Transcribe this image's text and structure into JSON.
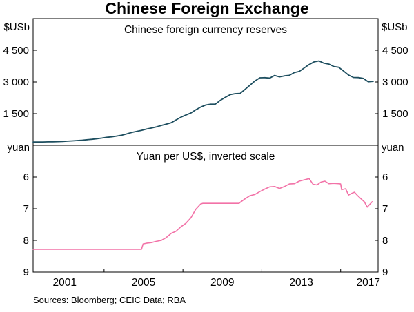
{
  "title": "Chinese Foreign Exchange",
  "sources": "Sources: Bloomberg; CEIC Data; RBA",
  "colors": {
    "reserves_line": "#1d4e5f",
    "yuan_line": "#f272a7",
    "axis": "#000000"
  },
  "xaxis": {
    "range": [
      2000,
      2017.5
    ],
    "labels": [
      {
        "label": "2001",
        "x": 2001.6
      },
      {
        "label": "2005",
        "x": 2005.6
      },
      {
        "label": "2009",
        "x": 2009.6
      },
      {
        "label": "2013",
        "x": 2013.6
      },
      {
        "label": "2017",
        "x": 2017.0
      }
    ],
    "ticks": [
      2003.6,
      2007.6,
      2011.6,
      2015.6
    ]
  },
  "chart_data": [
    {
      "type": "line",
      "title": "Chinese foreign currency reserves",
      "unit": "$USb",
      "ylim": [
        0,
        6000
      ],
      "inverted": false,
      "color": "#1d4e5f",
      "yticks": [
        {
          "v": 1500,
          "label": "1 500"
        },
        {
          "v": 3000,
          "label": "3 000"
        },
        {
          "v": 4500,
          "label": "4 500"
        }
      ],
      "points": [
        [
          2000.0,
          157
        ],
        [
          2000.25,
          158
        ],
        [
          2000.5,
          160
        ],
        [
          2000.75,
          166
        ],
        [
          2001.0,
          170
        ],
        [
          2001.25,
          176
        ],
        [
          2001.5,
          186
        ],
        [
          2001.75,
          200
        ],
        [
          2002.0,
          212
        ],
        [
          2002.25,
          228
        ],
        [
          2002.5,
          246
        ],
        [
          2002.75,
          266
        ],
        [
          2003.0,
          286
        ],
        [
          2003.25,
          316
        ],
        [
          2003.5,
          346
        ],
        [
          2003.75,
          380
        ],
        [
          2004.0,
          403
        ],
        [
          2004.25,
          440
        ],
        [
          2004.5,
          480
        ],
        [
          2004.75,
          540
        ],
        [
          2005.0,
          610
        ],
        [
          2005.25,
          660
        ],
        [
          2005.5,
          711
        ],
        [
          2005.75,
          769
        ],
        [
          2006.0,
          819
        ],
        [
          2006.25,
          875
        ],
        [
          2006.5,
          941
        ],
        [
          2006.75,
          1000
        ],
        [
          2007.0,
          1066
        ],
        [
          2007.25,
          1202
        ],
        [
          2007.5,
          1333
        ],
        [
          2007.75,
          1434
        ],
        [
          2008.0,
          1528
        ],
        [
          2008.25,
          1682
        ],
        [
          2008.5,
          1809
        ],
        [
          2008.75,
          1906
        ],
        [
          2009.0,
          1946
        ],
        [
          2009.25,
          1954
        ],
        [
          2009.5,
          2132
        ],
        [
          2009.75,
          2273
        ],
        [
          2010.0,
          2399
        ],
        [
          2010.25,
          2447
        ],
        [
          2010.5,
          2454
        ],
        [
          2010.75,
          2648
        ],
        [
          2011.0,
          2847
        ],
        [
          2011.25,
          3045
        ],
        [
          2011.5,
          3197
        ],
        [
          2011.75,
          3202
        ],
        [
          2012.0,
          3181
        ],
        [
          2012.25,
          3305
        ],
        [
          2012.5,
          3240
        ],
        [
          2012.75,
          3287
        ],
        [
          2013.0,
          3312
        ],
        [
          2013.25,
          3443
        ],
        [
          2013.5,
          3497
        ],
        [
          2013.75,
          3662
        ],
        [
          2014.0,
          3821
        ],
        [
          2014.25,
          3948
        ],
        [
          2014.5,
          3993
        ],
        [
          2014.75,
          3888
        ],
        [
          2015.0,
          3843
        ],
        [
          2015.25,
          3730
        ],
        [
          2015.5,
          3694
        ],
        [
          2015.75,
          3514
        ],
        [
          2016.0,
          3330
        ],
        [
          2016.25,
          3213
        ],
        [
          2016.5,
          3205
        ],
        [
          2016.75,
          3166
        ],
        [
          2017.0,
          3011
        ],
        [
          2017.25,
          3030
        ]
      ]
    },
    {
      "type": "line",
      "title": "Yuan per US$, inverted scale",
      "unit": "yuan",
      "ylim": [
        5,
        9
      ],
      "inverted": true,
      "color": "#f272a7",
      "yticks": [
        {
          "v": 6,
          "label": "6"
        },
        {
          "v": 7,
          "label": "7"
        },
        {
          "v": 8,
          "label": "8"
        },
        {
          "v": 9,
          "label": "9"
        }
      ],
      "points": [
        [
          2000.0,
          8.28
        ],
        [
          2002.0,
          8.28
        ],
        [
          2004.0,
          8.28
        ],
        [
          2005.5,
          8.28
        ],
        [
          2005.58,
          8.11
        ],
        [
          2005.75,
          8.09
        ],
        [
          2006.0,
          8.07
        ],
        [
          2006.25,
          8.03
        ],
        [
          2006.5,
          8.0
        ],
        [
          2006.75,
          7.91
        ],
        [
          2007.0,
          7.78
        ],
        [
          2007.25,
          7.71
        ],
        [
          2007.5,
          7.57
        ],
        [
          2007.75,
          7.46
        ],
        [
          2008.0,
          7.29
        ],
        [
          2008.25,
          7.02
        ],
        [
          2008.5,
          6.85
        ],
        [
          2008.6,
          6.83
        ],
        [
          2009.0,
          6.83
        ],
        [
          2009.5,
          6.83
        ],
        [
          2010.0,
          6.83
        ],
        [
          2010.45,
          6.83
        ],
        [
          2010.5,
          6.8
        ],
        [
          2010.75,
          6.69
        ],
        [
          2011.0,
          6.59
        ],
        [
          2011.25,
          6.55
        ],
        [
          2011.5,
          6.46
        ],
        [
          2011.75,
          6.38
        ],
        [
          2012.0,
          6.31
        ],
        [
          2012.25,
          6.3
        ],
        [
          2012.5,
          6.36
        ],
        [
          2012.75,
          6.3
        ],
        [
          2013.0,
          6.22
        ],
        [
          2013.25,
          6.21
        ],
        [
          2013.5,
          6.13
        ],
        [
          2013.75,
          6.09
        ],
        [
          2014.0,
          6.05
        ],
        [
          2014.2,
          6.23
        ],
        [
          2014.4,
          6.25
        ],
        [
          2014.6,
          6.16
        ],
        [
          2014.8,
          6.13
        ],
        [
          2015.0,
          6.21
        ],
        [
          2015.25,
          6.2
        ],
        [
          2015.5,
          6.21
        ],
        [
          2015.6,
          6.22
        ],
        [
          2015.65,
          6.4
        ],
        [
          2015.85,
          6.37
        ],
        [
          2016.0,
          6.57
        ],
        [
          2016.15,
          6.52
        ],
        [
          2016.3,
          6.48
        ],
        [
          2016.45,
          6.58
        ],
        [
          2016.6,
          6.67
        ],
        [
          2016.8,
          6.78
        ],
        [
          2016.95,
          6.95
        ],
        [
          2017.05,
          6.88
        ],
        [
          2017.2,
          6.78
        ]
      ]
    }
  ]
}
